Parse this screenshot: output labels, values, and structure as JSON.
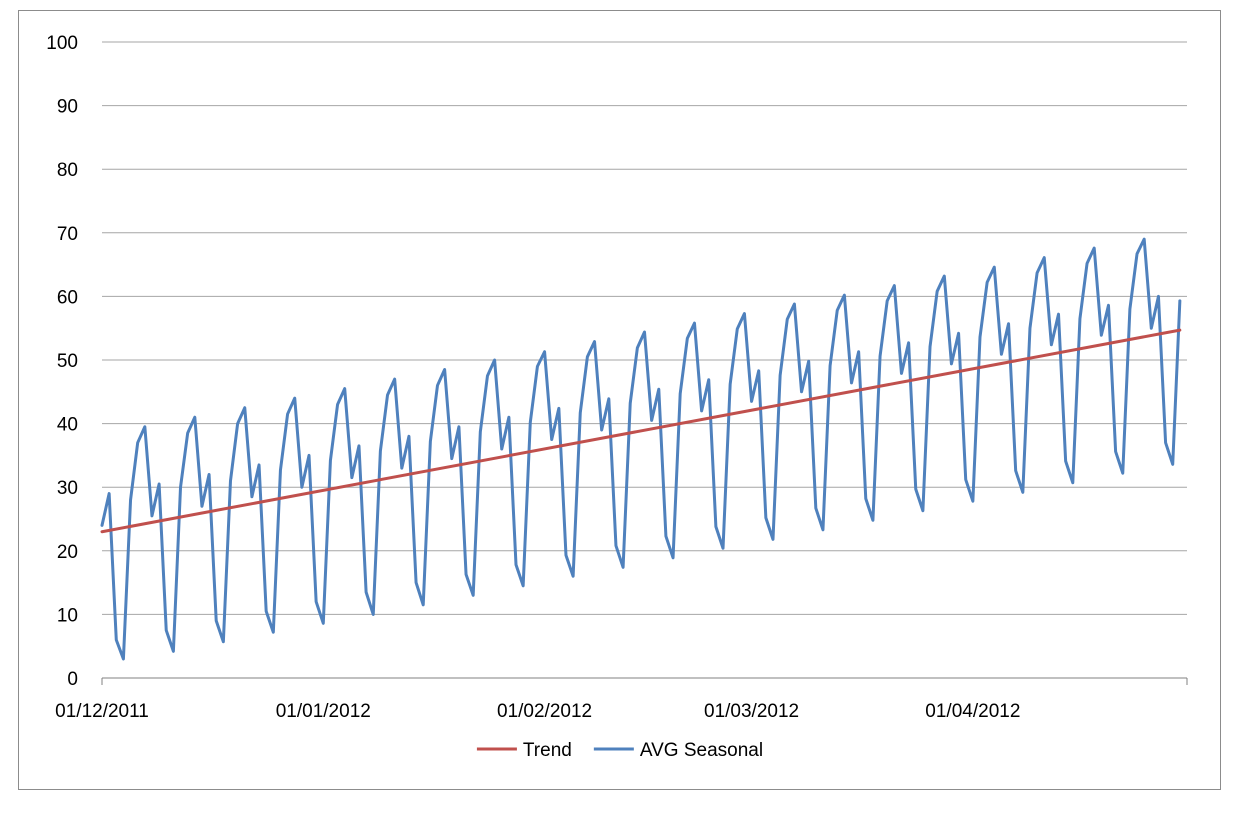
{
  "chart_data": {
    "type": "line",
    "title": "",
    "xlabel": "",
    "ylabel": "",
    "ylim": [
      0,
      100
    ],
    "y_ticks": [
      0,
      10,
      20,
      30,
      40,
      50,
      60,
      70,
      80,
      90,
      100
    ],
    "y_tick_labels": [
      "0",
      "10",
      "20",
      "30",
      "40",
      "50",
      "60",
      "70",
      "80",
      "90",
      "100"
    ],
    "x_range": [
      "2011-12-01",
      "2012-04-30"
    ],
    "x_ticks": [
      "2011-12-01",
      "2012-01-01",
      "2012-02-01",
      "2012-03-01",
      "2012-04-01"
    ],
    "x_tick_labels": [
      "01/12/2011",
      "01/01/2012",
      "01/02/2012",
      "01/03/2012",
      "01/04/2012"
    ],
    "grid": "horizontal",
    "legend": {
      "placement": "bottom",
      "entries": [
        "Trend",
        "AVG Seasonal"
      ]
    },
    "series": [
      {
        "name": "Trend",
        "color": "#c0504d",
        "points": [
          [
            "2011-12-01",
            23.0
          ],
          [
            "2012-04-30",
            54.7
          ]
        ]
      },
      {
        "name": "AVG Seasonal",
        "color": "#4f81bd",
        "points": [
          [
            "2011-12-01",
            24.0
          ],
          [
            "2011-12-02",
            29.0
          ],
          [
            "2011-12-03",
            6.0
          ],
          [
            "2011-12-04",
            3.0
          ],
          [
            "2011-12-05",
            28.0
          ],
          [
            "2011-12-06",
            37.0
          ],
          [
            "2011-12-07",
            39.5
          ],
          [
            "2011-12-08",
            25.5
          ],
          [
            "2011-12-09",
            30.5
          ],
          [
            "2011-12-10",
            7.5
          ],
          [
            "2011-12-11",
            4.2
          ],
          [
            "2011-12-12",
            30.0
          ],
          [
            "2011-12-13",
            38.5
          ],
          [
            "2011-12-14",
            41.0
          ],
          [
            "2011-12-15",
            27.0
          ],
          [
            "2011-12-16",
            32.0
          ],
          [
            "2011-12-17",
            9.0
          ],
          [
            "2011-12-18",
            5.7
          ],
          [
            "2011-12-19",
            31.0
          ],
          [
            "2011-12-20",
            40.0
          ],
          [
            "2011-12-21",
            42.5
          ],
          [
            "2011-12-22",
            28.5
          ],
          [
            "2011-12-23",
            33.5
          ],
          [
            "2011-12-24",
            10.5
          ],
          [
            "2011-12-25",
            7.2
          ],
          [
            "2011-12-26",
            32.7
          ],
          [
            "2011-12-27",
            41.5
          ],
          [
            "2011-12-28",
            44.0
          ],
          [
            "2011-12-29",
            30.0
          ],
          [
            "2011-12-30",
            35.0
          ],
          [
            "2011-12-31",
            12.0
          ],
          [
            "2012-01-01",
            8.6
          ],
          [
            "2012-01-02",
            34.2
          ],
          [
            "2012-01-03",
            43.0
          ],
          [
            "2012-01-04",
            45.5
          ],
          [
            "2012-01-05",
            31.5
          ],
          [
            "2012-01-06",
            36.5
          ],
          [
            "2012-01-07",
            13.5
          ],
          [
            "2012-01-08",
            10.0
          ],
          [
            "2012-01-09",
            35.7
          ],
          [
            "2012-01-10",
            44.5
          ],
          [
            "2012-01-11",
            47.0
          ],
          [
            "2012-01-12",
            33.0
          ],
          [
            "2012-01-13",
            38.0
          ],
          [
            "2012-01-14",
            15.0
          ],
          [
            "2012-01-15",
            11.5
          ],
          [
            "2012-01-16",
            37.2
          ],
          [
            "2012-01-17",
            46.0
          ],
          [
            "2012-01-18",
            48.5
          ],
          [
            "2012-01-19",
            34.5
          ],
          [
            "2012-01-20",
            39.5
          ],
          [
            "2012-01-21",
            16.3
          ],
          [
            "2012-01-22",
            13.0
          ],
          [
            "2012-01-23",
            38.7
          ],
          [
            "2012-01-24",
            47.5
          ],
          [
            "2012-01-25",
            50.0
          ],
          [
            "2012-01-26",
            36.0
          ],
          [
            "2012-01-27",
            41.0
          ],
          [
            "2012-01-28",
            17.8
          ],
          [
            "2012-01-29",
            14.5
          ],
          [
            "2012-01-30",
            40.2
          ],
          [
            "2012-01-31",
            49.0
          ],
          [
            "2012-02-01",
            51.3
          ],
          [
            "2012-02-02",
            37.5
          ],
          [
            "2012-02-03",
            42.4
          ],
          [
            "2012-02-04",
            19.3
          ],
          [
            "2012-02-05",
            16.0
          ],
          [
            "2012-02-06",
            41.7
          ],
          [
            "2012-02-07",
            50.5
          ],
          [
            "2012-02-08",
            52.9
          ],
          [
            "2012-02-09",
            39.0
          ],
          [
            "2012-02-10",
            43.9
          ],
          [
            "2012-02-11",
            20.8
          ],
          [
            "2012-02-12",
            17.4
          ],
          [
            "2012-02-13",
            43.2
          ],
          [
            "2012-02-14",
            51.9
          ],
          [
            "2012-02-15",
            54.4
          ],
          [
            "2012-02-16",
            40.5
          ],
          [
            "2012-02-17",
            45.4
          ],
          [
            "2012-02-18",
            22.3
          ],
          [
            "2012-02-19",
            18.9
          ],
          [
            "2012-02-20",
            44.7
          ],
          [
            "2012-02-21",
            53.4
          ],
          [
            "2012-02-22",
            55.8
          ],
          [
            "2012-02-23",
            42.0
          ],
          [
            "2012-02-24",
            46.9
          ],
          [
            "2012-02-25",
            23.8
          ],
          [
            "2012-02-26",
            20.4
          ],
          [
            "2012-02-27",
            46.2
          ],
          [
            "2012-02-28",
            54.9
          ],
          [
            "2012-02-29",
            57.3
          ],
          [
            "2012-03-01",
            43.5
          ],
          [
            "2012-03-02",
            48.3
          ],
          [
            "2012-03-03",
            25.2
          ],
          [
            "2012-03-04",
            21.8
          ],
          [
            "2012-03-05",
            47.6
          ],
          [
            "2012-03-06",
            56.4
          ],
          [
            "2012-03-07",
            58.8
          ],
          [
            "2012-03-08",
            45.0
          ],
          [
            "2012-03-09",
            49.8
          ],
          [
            "2012-03-10",
            26.7
          ],
          [
            "2012-03-11",
            23.3
          ],
          [
            "2012-03-12",
            49.1
          ],
          [
            "2012-03-13",
            57.8
          ],
          [
            "2012-03-14",
            60.2
          ],
          [
            "2012-03-15",
            46.4
          ],
          [
            "2012-03-16",
            51.3
          ],
          [
            "2012-03-17",
            28.2
          ],
          [
            "2012-03-18",
            24.8
          ],
          [
            "2012-03-19",
            50.6
          ],
          [
            "2012-03-20",
            59.3
          ],
          [
            "2012-03-21",
            61.7
          ],
          [
            "2012-03-22",
            47.9
          ],
          [
            "2012-03-23",
            52.7
          ],
          [
            "2012-03-24",
            29.7
          ],
          [
            "2012-03-25",
            26.3
          ],
          [
            "2012-03-26",
            52.1
          ],
          [
            "2012-03-27",
            60.8
          ],
          [
            "2012-03-28",
            63.2
          ],
          [
            "2012-03-29",
            49.4
          ],
          [
            "2012-03-30",
            54.2
          ],
          [
            "2012-03-31",
            31.2
          ],
          [
            "2012-04-01",
            27.8
          ],
          [
            "2012-04-02",
            53.6
          ],
          [
            "2012-04-03",
            62.2
          ],
          [
            "2012-04-04",
            64.6
          ],
          [
            "2012-04-05",
            50.9
          ],
          [
            "2012-04-06",
            55.7
          ],
          [
            "2012-04-07",
            32.6
          ],
          [
            "2012-04-08",
            29.2
          ],
          [
            "2012-04-09",
            55.0
          ],
          [
            "2012-04-10",
            63.7
          ],
          [
            "2012-04-11",
            66.1
          ],
          [
            "2012-04-12",
            52.4
          ],
          [
            "2012-04-13",
            57.2
          ],
          [
            "2012-04-14",
            34.1
          ],
          [
            "2012-04-15",
            30.7
          ],
          [
            "2012-04-16",
            56.5
          ],
          [
            "2012-04-17",
            65.2
          ],
          [
            "2012-04-18",
            67.6
          ],
          [
            "2012-04-19",
            53.9
          ],
          [
            "2012-04-20",
            58.6
          ],
          [
            "2012-04-21",
            35.6
          ],
          [
            "2012-04-22",
            32.2
          ],
          [
            "2012-04-23",
            58.0
          ],
          [
            "2012-04-24",
            66.7
          ],
          [
            "2012-04-25",
            69.0
          ],
          [
            "2012-04-26",
            55.0
          ],
          [
            "2012-04-27",
            60.0
          ],
          [
            "2012-04-28",
            37.0
          ],
          [
            "2012-04-29",
            33.6
          ],
          [
            "2012-04-30",
            59.3
          ]
        ]
      }
    ]
  }
}
